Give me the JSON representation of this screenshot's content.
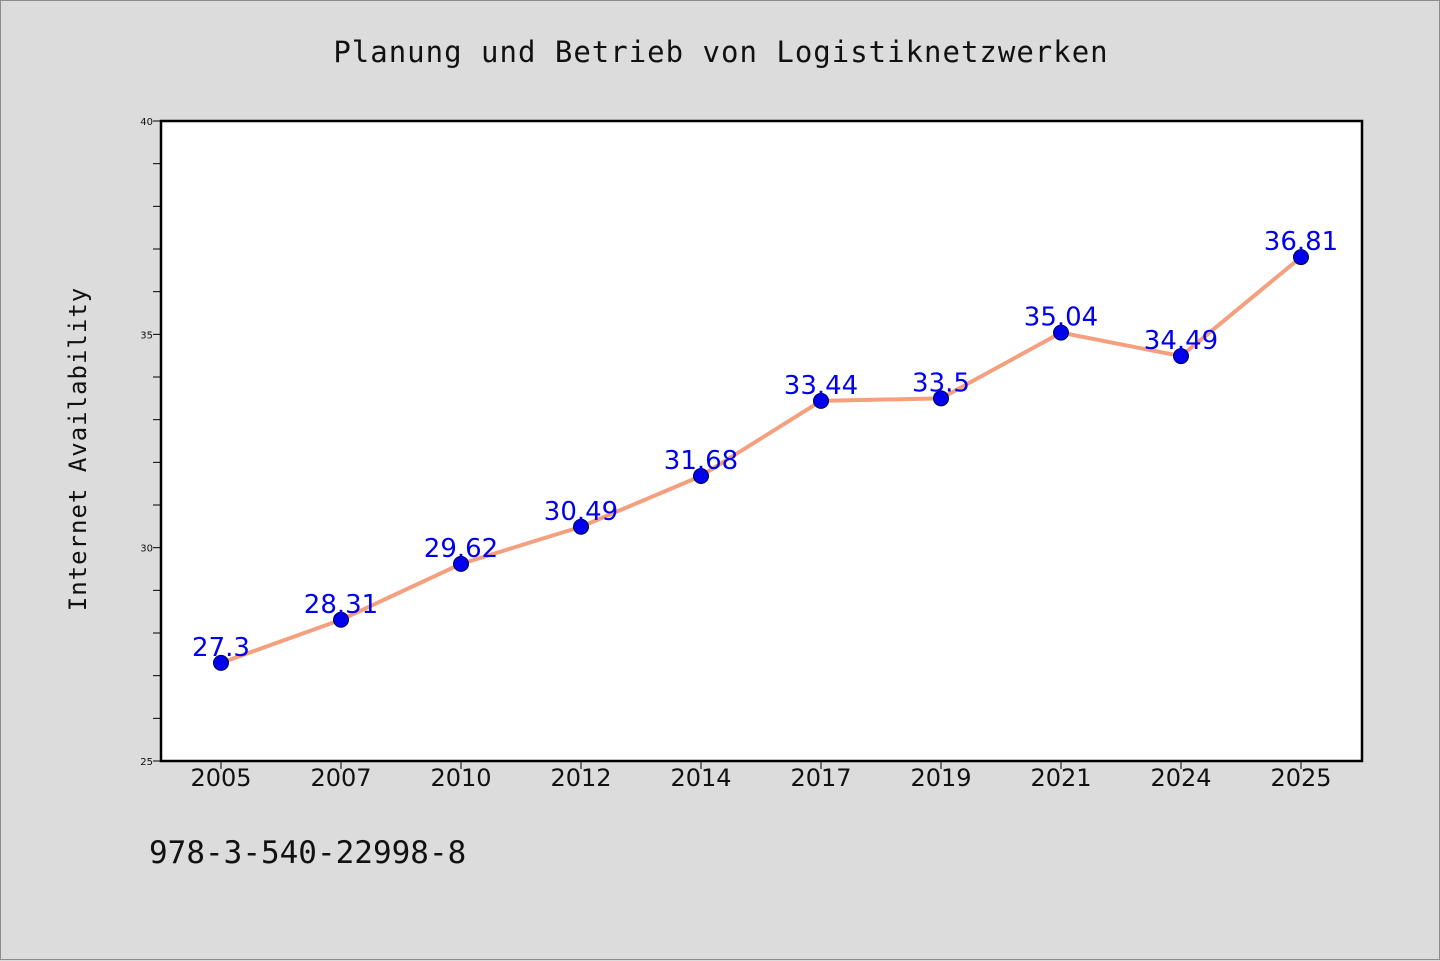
{
  "chart_data": {
    "type": "line",
    "title": "Planung und Betrieb von Logistiknetzwerken",
    "ylabel": "Internet Availability",
    "xlabel": "",
    "categories": [
      "2005",
      "2007",
      "2010",
      "2012",
      "2014",
      "2017",
      "2019",
      "2021",
      "2024",
      "2025"
    ],
    "series": [
      {
        "values": [
          27.3,
          28.31,
          29.62,
          30.49,
          31.68,
          33.44,
          33.5,
          35.04,
          34.49,
          36.81
        ],
        "labels": [
          "27.3",
          "28.31",
          "29.62",
          "30.49",
          "31.68",
          "33.44",
          "33.5",
          "35.04",
          "34.49",
          "36.81"
        ]
      }
    ],
    "ylim": [
      25,
      40
    ],
    "yticks": [
      "25",
      "30",
      "35",
      "40"
    ],
    "grid": false,
    "line_color": "#f4a07e",
    "marker_color": "#0000ee",
    "label_color": "#0000ee"
  },
  "footer": {
    "isbn": "978-3-540-22998-8"
  }
}
